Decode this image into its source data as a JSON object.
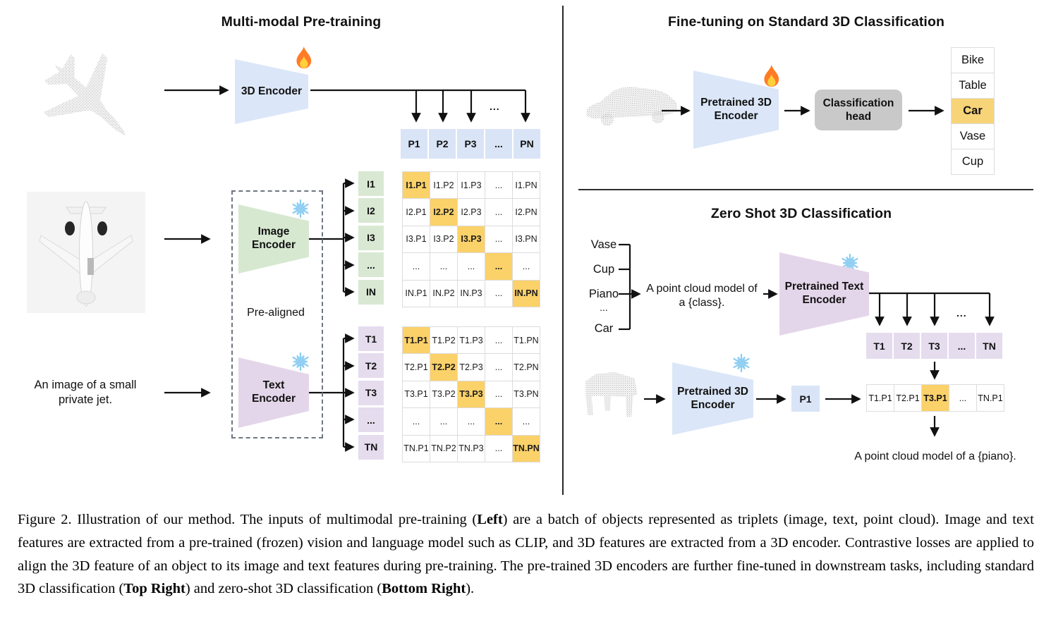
{
  "left": {
    "title": "Multi-modal Pre-training",
    "encoder3d_label": "3D Encoder",
    "image_encoder_l1": "Image",
    "image_encoder_l2": "Encoder",
    "text_encoder_l1": "Text",
    "text_encoder_l2": "Encoder",
    "pre_aligned": "Pre-aligned",
    "image_caption_l1": "An image of a small",
    "image_caption_l2": "private jet.",
    "fork_ellipsis": "...",
    "p_row": {
      "cells": [
        "P1",
        "P2",
        "P3",
        "...",
        "PN"
      ]
    },
    "i_labels": {
      "cells": [
        "I1",
        "I2",
        "I3",
        "...",
        "IN"
      ]
    },
    "t_labels": {
      "cells": [
        "T1",
        "T2",
        "T3",
        "...",
        "TN"
      ]
    },
    "i_matrix": {
      "diag_highlight": true,
      "rows": [
        [
          "I1.P1",
          "I1.P2",
          "I1.P3",
          "...",
          "I1.PN"
        ],
        [
          "I2.P1",
          "I2.P2",
          "I2.P3",
          "...",
          "I2.PN"
        ],
        [
          "I3.P1",
          "I3.P2",
          "I3.P3",
          "...",
          "I3.PN"
        ],
        [
          "...",
          "...",
          "...",
          "...",
          "..."
        ],
        [
          "IN.P1",
          "IN.P2",
          "IN.P3",
          "...",
          "IN.PN"
        ]
      ]
    },
    "t_matrix": {
      "diag_highlight": true,
      "rows": [
        [
          "T1.P1",
          "T1.P2",
          "T1.P3",
          "...",
          "T1.PN"
        ],
        [
          "T2.P1",
          "T2.P2",
          "T2.P3",
          "...",
          "T2.PN"
        ],
        [
          "T3.P1",
          "T3.P2",
          "T3.P3",
          "...",
          "T3.PN"
        ],
        [
          "...",
          "...",
          "...",
          "...",
          "..."
        ],
        [
          "TN.P1",
          "TN.P2",
          "TN.P3",
          "...",
          "TN.PN"
        ]
      ]
    }
  },
  "right_top": {
    "title": "Fine-tuning on Standard 3D Classification",
    "encoder_l1": "Pretrained 3D",
    "encoder_l2": "Encoder",
    "head_l1": "Classification",
    "head_l2": "head",
    "classes": {
      "cells": [
        "Bike",
        "Table",
        "Car",
        "Vase",
        "Cup"
      ],
      "highlight": 2
    }
  },
  "right_bottom": {
    "title": "Zero Shot 3D Classification",
    "class_words": [
      "Vase",
      "Cup",
      "Piano",
      "...",
      "Car"
    ],
    "prompt_l1": "A point cloud model of",
    "prompt_l2": "a {class}.",
    "text_encoder_l1": "Pretrained Text",
    "text_encoder_l2": "Encoder",
    "encoder3d_l1": "Pretrained 3D",
    "encoder3d_l2": "Encoder",
    "fork_ellipsis": "...",
    "t_row": {
      "cells": [
        "T1",
        "T2",
        "T3",
        "...",
        "TN"
      ]
    },
    "p1_label": "P1",
    "result_row": {
      "cells": [
        "T1.P1",
        "T2.P1",
        "T3.P1",
        "...",
        "TN.P1"
      ],
      "highlight": 2
    },
    "result_prompt": "A point cloud model of a {piano}."
  },
  "caption": {
    "segments": [
      {
        "t": "Figure 2. Illustration of our method. The inputs of multimodal pre-training ("
      },
      {
        "t": "Left",
        "b": true
      },
      {
        "t": ") are a batch of objects represented as triplets (image, text, point cloud). Image and text features are extracted from a pre-trained (frozen) vision and language model such as CLIP, and 3D features are extracted from a 3D encoder. Contrastive losses are applied to align the 3D feature of an object to its image and text features during pre-training. The pre-trained 3D encoders are further fine-tuned in downstream tasks, including standard 3D classification ("
      },
      {
        "t": "Top Right",
        "b": true
      },
      {
        "t": ") and zero-shot 3D classification ("
      },
      {
        "t": "Bottom Right",
        "b": true
      },
      {
        "t": ")."
      }
    ]
  },
  "colors": {
    "highlight_orange": "#fbd169",
    "car_highlight": "#f8d478",
    "cell_blue": "#d9e4f6",
    "cell_green": "#d9e8d3",
    "cell_purple": "#e5dcee",
    "encoder_blue": "#dbe7f8",
    "encoder_green": "#d7e8d1",
    "encoder_purple": "#e4d6ea",
    "head_gray": "#c9c9c9"
  }
}
